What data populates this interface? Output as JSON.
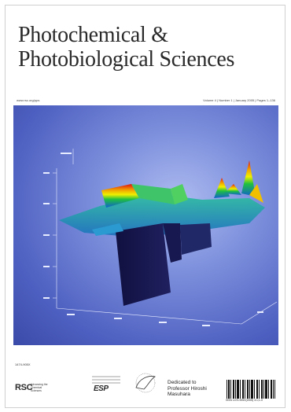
{
  "cover": {
    "title_line1": "Photochemical &",
    "title_line2": "Photobiological Sciences",
    "strip_left": "www.rsc.org/pps",
    "strip_right": "Volume 4 | Number 1 | January 2005 | Pages 1–136",
    "issn": "1474-905X",
    "publisher_logo": "RSC",
    "publisher_text": "Advancing the Chemical Sciences",
    "society_logo": "ESP",
    "dedication": "Dedicated to Professor Hiroshi Masuhara",
    "barcode_number": "ISSN 1474-905X(2005) 4:1;1-X",
    "colors": {
      "art_background": "#5a6bc9",
      "title_text": "#2a2a2a"
    }
  }
}
